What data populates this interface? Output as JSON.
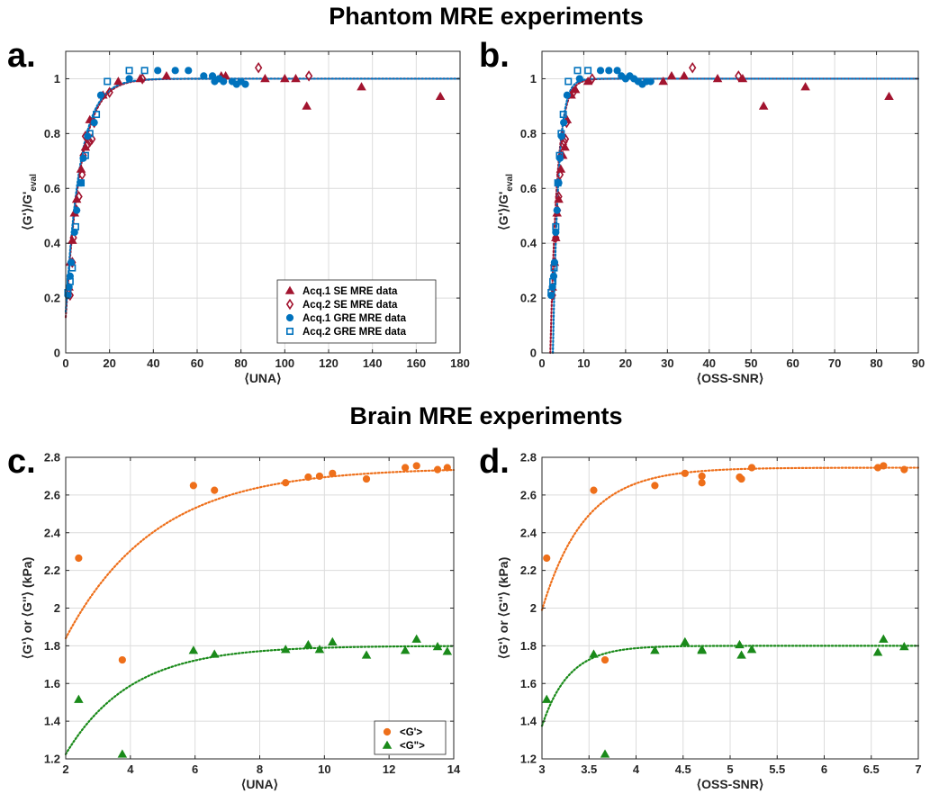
{
  "figure": {
    "section_top": "Phantom MRE experiments",
    "section_bottom": "Brain MRE experiments"
  },
  "colors": {
    "se": "#a2142f",
    "gre": "#0072bd",
    "storage": "#ee6f1a",
    "loss": "#1a8a1a"
  },
  "chart_data": [
    {
      "id": "a",
      "panel_label": "a.",
      "type": "scatter",
      "xlabel": "⟨UNA⟩",
      "ylabel_main": "⟨G'⟩/G'",
      "ylabel_sub": "eval",
      "xlim": [
        0,
        180
      ],
      "ylim": [
        0,
        1.1
      ],
      "xticks": [
        0,
        20,
        40,
        60,
        80,
        100,
        120,
        140,
        160,
        180
      ],
      "yticks": [
        0,
        0.2,
        0.4,
        0.6,
        0.8,
        1
      ],
      "ytick_labels": [
        "0",
        "0.2",
        "0.4",
        "0.6",
        "0.8",
        "1"
      ],
      "grid": true,
      "legend": "bottom-right",
      "fit_curves": [
        {
          "color": "#a2142f",
          "plateau": 1.0,
          "start_x": 0,
          "start_y": 0.13,
          "rate": 0.145
        },
        {
          "color": "#0072bd",
          "plateau": 1.0,
          "start_x": 0,
          "start_y": 0.15,
          "rate": 0.15
        }
      ],
      "series": [
        {
          "name": "Acq.1 SE MRE data",
          "marker": "triangle",
          "filled": true,
          "color": "#a2142f",
          "points": [
            [
              1.5,
              0.24
            ],
            [
              2,
              0.33
            ],
            [
              3,
              0.41
            ],
            [
              4,
              0.51
            ],
            [
              5,
              0.56
            ],
            [
              7,
              0.67
            ],
            [
              9,
              0.75
            ],
            [
              11,
              0.85
            ],
            [
              17,
              0.94
            ],
            [
              24,
              0.99
            ],
            [
              34,
              1.0
            ],
            [
              46,
              1.01
            ],
            [
              71,
              1.01
            ],
            [
              73,
              1.01
            ],
            [
              91,
              1.0
            ],
            [
              100,
              1.0
            ],
            [
              105,
              1.0
            ],
            [
              110,
              0.9
            ],
            [
              135,
              0.97
            ],
            [
              171,
              0.935
            ]
          ]
        },
        {
          "name": "Acq.2 SE MRE data",
          "marker": "diamond",
          "filled": false,
          "color": "#a2142f",
          "points": [
            [
              2,
              0.21
            ],
            [
              3,
              0.33
            ],
            [
              3.5,
              0.42
            ],
            [
              5,
              0.52
            ],
            [
              6,
              0.57
            ],
            [
              7.5,
              0.65
            ],
            [
              8,
              0.72
            ],
            [
              9,
              0.79
            ],
            [
              10,
              0.76
            ],
            [
              11,
              0.77
            ],
            [
              12,
              0.78
            ],
            [
              13,
              0.84
            ],
            [
              20,
              0.95
            ],
            [
              35,
              1.0
            ],
            [
              88,
              1.04
            ],
            [
              111,
              1.01
            ]
          ]
        },
        {
          "name": "Acq.1 GRE MRE data",
          "marker": "circle",
          "filled": true,
          "color": "#0072bd",
          "points": [
            [
              1,
              0.21
            ],
            [
              1.5,
              0.24
            ],
            [
              2,
              0.28
            ],
            [
              2.5,
              0.33
            ],
            [
              4,
              0.44
            ],
            [
              5,
              0.52
            ],
            [
              7,
              0.62
            ],
            [
              8,
              0.71
            ],
            [
              10,
              0.79
            ],
            [
              13,
              0.84
            ],
            [
              16,
              0.94
            ],
            [
              29,
              1.0
            ],
            [
              42,
              1.03
            ],
            [
              50,
              1.03
            ],
            [
              56,
              1.03
            ],
            [
              63,
              1.01
            ],
            [
              67,
              1.01
            ],
            [
              68,
              0.99
            ],
            [
              70,
              1.0
            ],
            [
              72,
              0.99
            ],
            [
              76,
              0.99
            ],
            [
              78,
              0.98
            ],
            [
              80,
              0.99
            ],
            [
              82,
              0.98
            ]
          ]
        },
        {
          "name": "Acq.2 GRE MRE data",
          "marker": "square",
          "filled": false,
          "color": "#0072bd",
          "points": [
            [
              1,
              0.22
            ],
            [
              2,
              0.26
            ],
            [
              3,
              0.31
            ],
            [
              4.5,
              0.46
            ],
            [
              7,
              0.62
            ],
            [
              9,
              0.72
            ],
            [
              11,
              0.8
            ],
            [
              14,
              0.87
            ],
            [
              19,
              0.99
            ],
            [
              29,
              1.03
            ],
            [
              36,
              1.03
            ]
          ]
        }
      ]
    },
    {
      "id": "b",
      "panel_label": "b.",
      "type": "scatter",
      "xlabel": "⟨OSS-SNR⟩",
      "ylabel_main": "⟨G'⟩/G'",
      "ylabel_sub": "eval",
      "xlim": [
        0,
        90
      ],
      "ylim": [
        0,
        1.1
      ],
      "xticks": [
        0,
        10,
        20,
        30,
        40,
        50,
        60,
        70,
        80,
        90
      ],
      "yticks": [
        0,
        0.2,
        0.4,
        0.6,
        0.8,
        1
      ],
      "ytick_labels": [
        "0",
        "0.2",
        "0.4",
        "0.6",
        "0.8",
        "1"
      ],
      "grid": true,
      "legend": "none",
      "fit_curves": [
        {
          "color": "#a2142f",
          "plateau": 1.0,
          "start_x": 2.0,
          "start_y": 0.0,
          "rate": 0.6
        },
        {
          "color": "#0072bd",
          "plateau": 1.0,
          "start_x": 2.6,
          "start_y": 0.0,
          "rate": 0.75
        }
      ],
      "series": [
        {
          "name": "Acq.1 SE MRE data",
          "marker": "triangle",
          "filled": true,
          "color": "#a2142f",
          "points": [
            [
              2.5,
              0.24
            ],
            [
              3,
              0.33
            ],
            [
              3.3,
              0.42
            ],
            [
              3.6,
              0.51
            ],
            [
              4,
              0.56
            ],
            [
              4.5,
              0.67
            ],
            [
              5,
              0.72
            ],
            [
              5.5,
              0.75
            ],
            [
              6,
              0.85
            ],
            [
              7,
              0.94
            ],
            [
              8,
              0.96
            ],
            [
              11,
              0.99
            ],
            [
              29,
              0.99
            ],
            [
              31,
              1.01
            ],
            [
              34,
              1.01
            ],
            [
              42,
              1.0
            ],
            [
              48,
              1.0
            ],
            [
              53,
              0.9
            ],
            [
              63,
              0.97
            ],
            [
              83,
              0.935
            ]
          ]
        },
        {
          "name": "Acq.2 SE MRE data",
          "marker": "diamond",
          "filled": false,
          "color": "#a2142f",
          "points": [
            [
              2.5,
              0.21
            ],
            [
              3,
              0.33
            ],
            [
              3.3,
              0.42
            ],
            [
              3.7,
              0.52
            ],
            [
              4,
              0.57
            ],
            [
              4.3,
              0.65
            ],
            [
              4.6,
              0.72
            ],
            [
              4.9,
              0.79
            ],
            [
              5.1,
              0.76
            ],
            [
              5.3,
              0.77
            ],
            [
              5.6,
              0.78
            ],
            [
              5.9,
              0.84
            ],
            [
              7.5,
              0.95
            ],
            [
              12,
              1.0
            ],
            [
              36,
              1.04
            ],
            [
              47,
              1.01
            ]
          ]
        },
        {
          "name": "Acq.1 GRE MRE data",
          "marker": "circle",
          "filled": true,
          "color": "#0072bd",
          "points": [
            [
              2.2,
              0.21
            ],
            [
              2.5,
              0.24
            ],
            [
              2.8,
              0.28
            ],
            [
              3,
              0.33
            ],
            [
              3.3,
              0.44
            ],
            [
              3.6,
              0.52
            ],
            [
              4,
              0.62
            ],
            [
              4.3,
              0.71
            ],
            [
              4.7,
              0.79
            ],
            [
              5.2,
              0.84
            ],
            [
              6,
              0.94
            ],
            [
              9,
              1.0
            ],
            [
              14,
              1.03
            ],
            [
              16,
              1.03
            ],
            [
              18,
              1.03
            ],
            [
              19,
              1.01
            ],
            [
              20,
              1.0
            ],
            [
              21,
              1.01
            ],
            [
              22,
              1.0
            ],
            [
              23,
              0.99
            ],
            [
              24,
              0.98
            ],
            [
              25,
              0.99
            ],
            [
              26,
              0.99
            ]
          ]
        },
        {
          "name": "Acq.2 GRE MRE data",
          "marker": "square",
          "filled": false,
          "color": "#0072bd",
          "points": [
            [
              2.2,
              0.22
            ],
            [
              2.6,
              0.26
            ],
            [
              2.9,
              0.31
            ],
            [
              3.3,
              0.46
            ],
            [
              3.8,
              0.62
            ],
            [
              4.2,
              0.72
            ],
            [
              4.6,
              0.8
            ],
            [
              5.1,
              0.87
            ],
            [
              6.3,
              0.99
            ],
            [
              8.5,
              1.03
            ],
            [
              11,
              1.03
            ]
          ]
        }
      ]
    },
    {
      "id": "c",
      "panel_label": "c.",
      "type": "scatter",
      "xlabel": "⟨UNA⟩",
      "ylabel_main": "⟨G'⟩ or ⟨G''⟩ (kPa)",
      "ylabel_sub": "",
      "xlim": [
        2,
        14
      ],
      "ylim": [
        1.2,
        2.8
      ],
      "xticks": [
        2,
        4,
        6,
        8,
        10,
        12,
        14
      ],
      "yticks": [
        1.2,
        1.4,
        1.6,
        1.8,
        2,
        2.2,
        2.4,
        2.6,
        2.8
      ],
      "ytick_labels": [
        "1.2",
        "1.4",
        "1.6",
        "1.8",
        "2",
        "2.2",
        "2.4",
        "2.6",
        "2.8"
      ],
      "grid": true,
      "legend": "bottom-right",
      "fit_curves": [
        {
          "color": "#ee6f1a",
          "plateau": 2.745,
          "start_x": 2,
          "start_y": 1.84,
          "rate": 0.36
        },
        {
          "color": "#1a8a1a",
          "plateau": 1.8,
          "start_x": 2,
          "start_y": 1.225,
          "rate": 0.5
        }
      ],
      "series": [
        {
          "name": "<G'>",
          "marker": "circle",
          "filled": true,
          "color": "#ee6f1a",
          "points": [
            [
              2.4,
              2.265
            ],
            [
              3.75,
              1.725
            ],
            [
              5.95,
              2.65
            ],
            [
              6.6,
              2.625
            ],
            [
              8.8,
              2.665
            ],
            [
              9.5,
              2.695
            ],
            [
              9.85,
              2.7
            ],
            [
              10.25,
              2.715
            ],
            [
              11.3,
              2.685
            ],
            [
              12.5,
              2.745
            ],
            [
              12.85,
              2.755
            ],
            [
              13.5,
              2.735
            ],
            [
              13.8,
              2.745
            ]
          ]
        },
        {
          "name": "<G\">",
          "marker": "triangle",
          "filled": true,
          "color": "#1a8a1a",
          "points": [
            [
              2.4,
              1.515
            ],
            [
              3.75,
              1.225
            ],
            [
              5.95,
              1.775
            ],
            [
              6.6,
              1.755
            ],
            [
              8.8,
              1.78
            ],
            [
              9.5,
              1.805
            ],
            [
              9.85,
              1.78
            ],
            [
              10.25,
              1.82
            ],
            [
              11.3,
              1.75
            ],
            [
              12.5,
              1.775
            ],
            [
              12.85,
              1.835
            ],
            [
              13.5,
              1.795
            ],
            [
              13.8,
              1.77
            ]
          ]
        }
      ]
    },
    {
      "id": "d",
      "panel_label": "d.",
      "type": "scatter",
      "xlabel": "⟨OSS-SNR⟩",
      "ylabel_main": "⟨G'⟩ or ⟨G''⟩ (kPa)",
      "ylabel_sub": "",
      "xlim": [
        3,
        7
      ],
      "ylim": [
        1.2,
        2.8
      ],
      "xticks": [
        3,
        3.5,
        4,
        4.5,
        5,
        5.5,
        6,
        6.5,
        7
      ],
      "yticks": [
        1.2,
        1.4,
        1.6,
        1.8,
        2,
        2.2,
        2.4,
        2.6,
        2.8
      ],
      "ytick_labels": [
        "1.2",
        "1.4",
        "1.6",
        "1.8",
        "2",
        "2.2",
        "2.4",
        "2.6",
        "2.8"
      ],
      "grid": true,
      "legend": "none",
      "fit_curves": [
        {
          "color": "#ee6f1a",
          "plateau": 2.745,
          "start_x": 3,
          "start_y": 1.99,
          "rate": 2.2
        },
        {
          "color": "#1a8a1a",
          "plateau": 1.8,
          "start_x": 3,
          "start_y": 1.375,
          "rate": 3.5
        }
      ],
      "series": [
        {
          "name": "<G'>",
          "marker": "circle",
          "filled": true,
          "color": "#ee6f1a",
          "points": [
            [
              3.05,
              2.265
            ],
            [
              3.55,
              2.625
            ],
            [
              3.67,
              1.725
            ],
            [
              4.2,
              2.65
            ],
            [
              4.52,
              2.715
            ],
            [
              4.7,
              2.665
            ],
            [
              4.7,
              2.7
            ],
            [
              5.1,
              2.695
            ],
            [
              5.12,
              2.685
            ],
            [
              5.23,
              2.745
            ],
            [
              6.57,
              2.745
            ],
            [
              6.63,
              2.755
            ],
            [
              6.85,
              2.735
            ]
          ]
        },
        {
          "name": "<G\">",
          "marker": "triangle",
          "filled": true,
          "color": "#1a8a1a",
          "points": [
            [
              3.05,
              1.515
            ],
            [
              3.55,
              1.755
            ],
            [
              3.67,
              1.225
            ],
            [
              4.2,
              1.775
            ],
            [
              4.52,
              1.82
            ],
            [
              4.7,
              1.78
            ],
            [
              4.7,
              1.775
            ],
            [
              5.1,
              1.805
            ],
            [
              5.12,
              1.75
            ],
            [
              5.23,
              1.78
            ],
            [
              6.57,
              1.765
            ],
            [
              6.63,
              1.835
            ],
            [
              6.85,
              1.795
            ]
          ]
        }
      ]
    }
  ]
}
